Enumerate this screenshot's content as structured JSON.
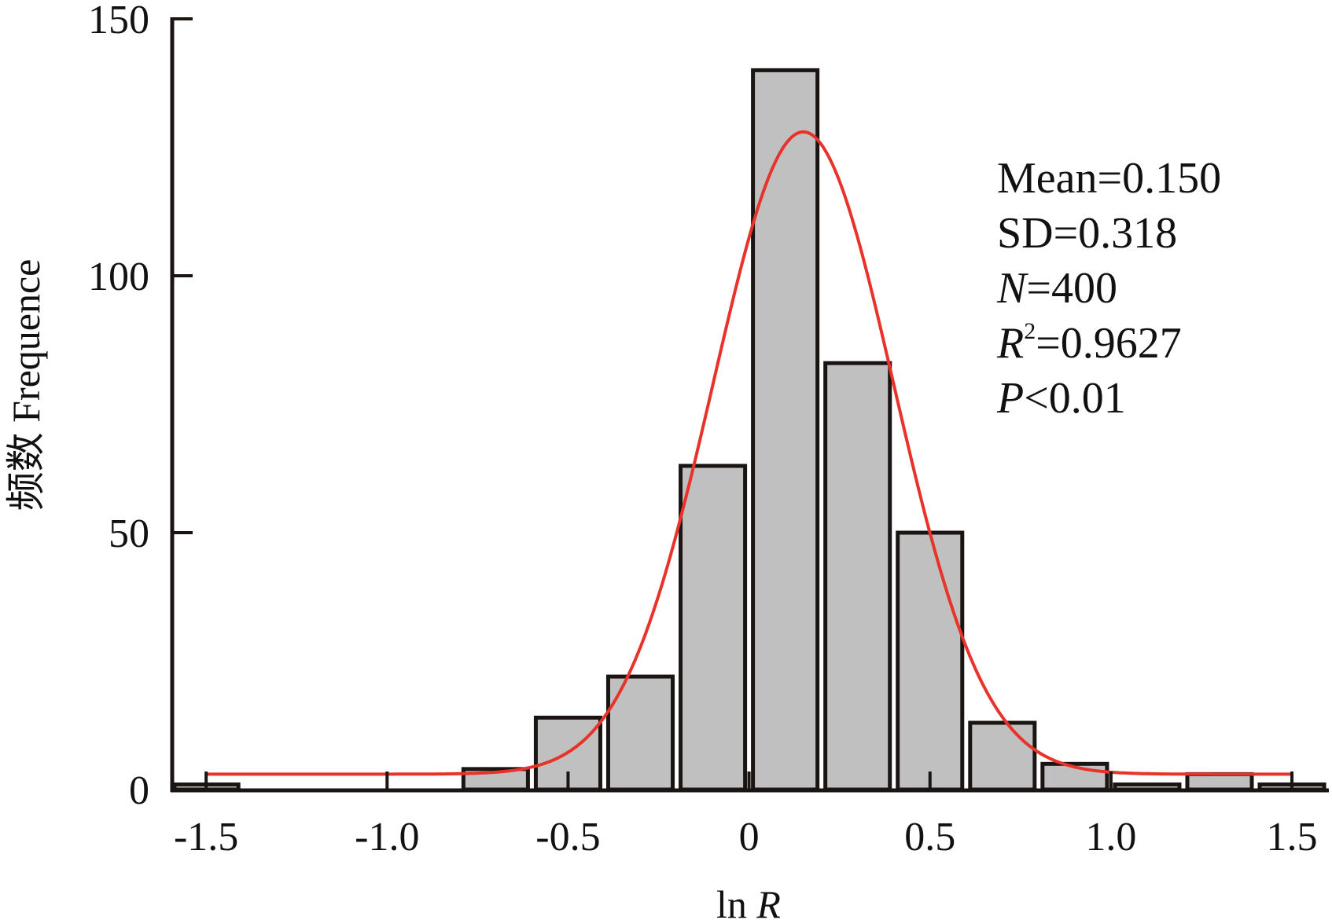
{
  "chart_data": {
    "type": "bar",
    "xlabel": "ln R",
    "xlabel_parts": {
      "plain": "ln ",
      "italic": "R"
    },
    "ylabel": "频数 Frequence",
    "xlim": [
      -1.6,
      1.6
    ],
    "ylim": [
      0,
      150
    ],
    "grid": false,
    "x_ticks": [
      -1.5,
      -1.0,
      -0.5,
      0,
      0.5,
      1.0,
      1.5
    ],
    "x_tick_labels": [
      "-1.5",
      "-1.0",
      "-0.5",
      "0",
      "0.5",
      "1.0",
      "1.5"
    ],
    "y_ticks": [
      0,
      50,
      100,
      150
    ],
    "y_tick_labels": [
      "0",
      "50",
      "100",
      "150"
    ],
    "bins": [
      {
        "lo": -1.6,
        "hi": -1.4,
        "value": 1
      },
      {
        "lo": -0.8,
        "hi": -0.6,
        "value": 4
      },
      {
        "lo": -0.6,
        "hi": -0.4,
        "value": 14
      },
      {
        "lo": -0.4,
        "hi": -0.2,
        "value": 22
      },
      {
        "lo": -0.2,
        "hi": 0.0,
        "value": 63
      },
      {
        "lo": 0.0,
        "hi": 0.2,
        "value": 140
      },
      {
        "lo": 0.2,
        "hi": 0.4,
        "value": 83
      },
      {
        "lo": 0.4,
        "hi": 0.6,
        "value": 50
      },
      {
        "lo": 0.6,
        "hi": 0.8,
        "value": 13
      },
      {
        "lo": 0.8,
        "hi": 1.0,
        "value": 5
      },
      {
        "lo": 1.0,
        "hi": 1.2,
        "value": 1
      },
      {
        "lo": 1.2,
        "hi": 1.4,
        "value": 3
      },
      {
        "lo": 1.4,
        "hi": 1.6,
        "value": 1
      }
    ],
    "fit_curve": {
      "type": "gaussian",
      "y0": 3,
      "xc": 0.15,
      "w": 0.25,
      "A": 125,
      "x_range": [
        -1.5,
        1.5
      ],
      "color": "#e8332a"
    },
    "bar_color": "#c0c0c0",
    "bar_edge_color": "#1a1512",
    "annotations": [
      {
        "italic": "",
        "rest": "Mean=0.150"
      },
      {
        "italic": "",
        "rest": "SD=0.318"
      },
      {
        "italic": "N",
        "rest": "=400"
      },
      {
        "italic": "R",
        "sup": "2",
        "rest": "=0.9627"
      },
      {
        "italic": "P",
        "rest": "<0.01"
      }
    ]
  }
}
